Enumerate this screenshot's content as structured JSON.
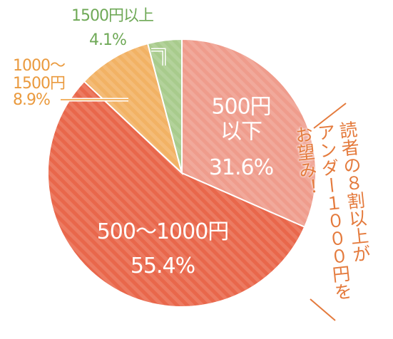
{
  "chart_data": {
    "type": "pie",
    "categories": [
      "500円\n以下",
      "500〜1000円",
      "1000〜\n1500円",
      "1500円以上"
    ],
    "values": [
      31.6,
      55.4,
      8.9,
      4.1
    ],
    "value_labels": [
      "31.6%",
      "55.4%",
      "8.9%",
      "4.1%"
    ],
    "colors": [
      "#ef9c8c",
      "#e9674b",
      "#f2b264",
      "#a8cb8c"
    ],
    "annotation": [
      "読者の８割以上が",
      "アンダー１０００円を",
      "お望み！"
    ]
  }
}
